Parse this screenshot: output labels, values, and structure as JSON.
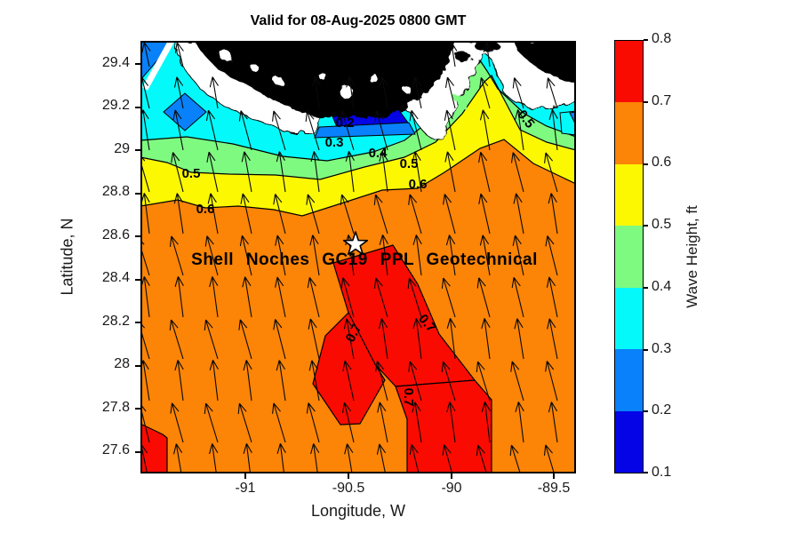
{
  "figure": {
    "title": "Valid for 08-Aug-2025 0800 GMT"
  },
  "axes": {
    "x_label": "Longitude, W",
    "y_label": "Latitude, N",
    "x_tick_labels": [
      "-91",
      "-90.5",
      "-90",
      "-89.5"
    ],
    "y_tick_labels": [
      "29.4",
      "29.2",
      "29",
      "28.8",
      "28.6",
      "28.4",
      "28.2",
      "28",
      "27.8",
      "27.6"
    ]
  },
  "colorbar": {
    "label": "Wave Height, ft",
    "tick_labels": [
      "0.8",
      "0.7",
      "0.6",
      "0.5",
      "0.4",
      "0.3",
      "0.2",
      "0.1"
    ],
    "band_colors_top_to_bottom": [
      "#F90B02",
      "#FC8406",
      "#FCF802",
      "#7EFA80",
      "#04FAFA",
      "#0881FA",
      "#0404E6"
    ]
  },
  "map": {
    "site_label": "Shell Noches  GC19 PPL  Geotechnical",
    "marker": "white star",
    "land_color": "#000000",
    "dominant_sea_color": "#FC8406",
    "contour_labels": [
      {
        "text": "0.5"
      },
      {
        "text": "0.6"
      },
      {
        "text": "0.2"
      },
      {
        "text": "0.3"
      },
      {
        "text": "0.4"
      },
      {
        "text": "0.5"
      },
      {
        "text": "0.6"
      },
      {
        "text": "0.5"
      },
      {
        "text": "0.7"
      },
      {
        "text": "0.7"
      },
      {
        "text": "0.7"
      }
    ]
  },
  "chart_data": {
    "type": "heatmap",
    "subtype": "filled-contour map with quiver arrows (wave height forecast)",
    "title": "Valid for 08-Aug-2025 0800 GMT",
    "xlabel": "Longitude, W",
    "ylabel": "Latitude, N",
    "xlim": [
      -91.5,
      -89.4
    ],
    "ylim": [
      27.5,
      29.5
    ],
    "x_ticks": [
      -91,
      -90.5,
      -90,
      -89.5
    ],
    "y_ticks": [
      29.4,
      29.2,
      29,
      28.8,
      28.6,
      28.4,
      28.2,
      28,
      27.8,
      27.6
    ],
    "colorbar": {
      "label": "Wave Height, ft",
      "min": 0.1,
      "max": 0.8,
      "step": 0.1,
      "levels": [
        {
          "range_ft": [
            0.1,
            0.2
          ],
          "color": "#0404E6"
        },
        {
          "range_ft": [
            0.2,
            0.3
          ],
          "color": "#0881FA"
        },
        {
          "range_ft": [
            0.3,
            0.4
          ],
          "color": "#04FAFA"
        },
        {
          "range_ft": [
            0.4,
            0.5
          ],
          "color": "#7EFA80"
        },
        {
          "range_ft": [
            0.5,
            0.6
          ],
          "color": "#FCF802"
        },
        {
          "range_ft": [
            0.6,
            0.7
          ],
          "color": "#FC8406"
        },
        {
          "range_ft": [
            0.7,
            0.8
          ],
          "color": "#F90B02"
        }
      ]
    },
    "labeled_contour_levels_ft": [
      0.2,
      0.3,
      0.4,
      0.5,
      0.6,
      0.7
    ],
    "site": {
      "name": "Shell Noches  GC19 PPL  Geotechnical",
      "lon": -90.47,
      "lat": 28.56,
      "marker": "star"
    },
    "field_summary": [
      {
        "region": "offshore, most of map south of ~28.8N",
        "wave_height_ft": "0.6-0.7 (orange)"
      },
      {
        "region": "diagonal patch ~28.0-28.5N / 90.0-90.6W extending to south edge, plus bottom-left corner",
        "wave_height_ft": "0.7-0.8 (red)"
      },
      {
        "region": "bands approaching the coast",
        "wave_height_ft": "0.5-0.6 (yellow) then 0.4-0.5 (green)"
      },
      {
        "region": "nearshore strip west half, pocket near 29.05N/90.45W, and top-left corner",
        "wave_height_ft": "0.1-0.4 (cyan/blue/dark blue)"
      },
      {
        "region": "north edge",
        "wave_height_ft": "land: black Louisiana coast with white marsh fringe"
      }
    ],
    "quiver": {
      "description": "black wave-direction arrows on a regular grid, pointing roughly NNW (up, tilted slightly west)"
    }
  }
}
